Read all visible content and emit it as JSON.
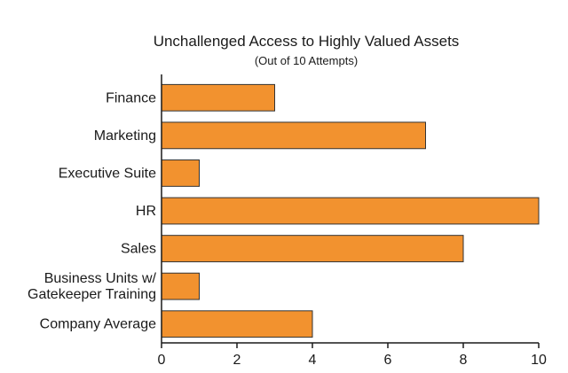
{
  "chart_data": {
    "type": "bar",
    "orientation": "horizontal",
    "title": "Unchallenged Access to Highly Valued Assets",
    "subtitle": "(Out of 10 Attempts)",
    "xlabel": "",
    "ylabel": "",
    "xlim": [
      0,
      10
    ],
    "xticks": [
      0,
      2,
      4,
      6,
      8,
      10
    ],
    "grid": false,
    "legend": "none",
    "bar_color": "#f2922f",
    "categories": [
      [
        "Finance"
      ],
      [
        "Marketing"
      ],
      [
        "Executive Suite"
      ],
      [
        "HR"
      ],
      [
        "Sales"
      ],
      [
        "Business Units w/",
        "Gatekeeper Training"
      ],
      [
        "Company Average"
      ]
    ],
    "values": [
      3,
      7,
      1,
      10,
      8,
      1,
      4
    ]
  }
}
